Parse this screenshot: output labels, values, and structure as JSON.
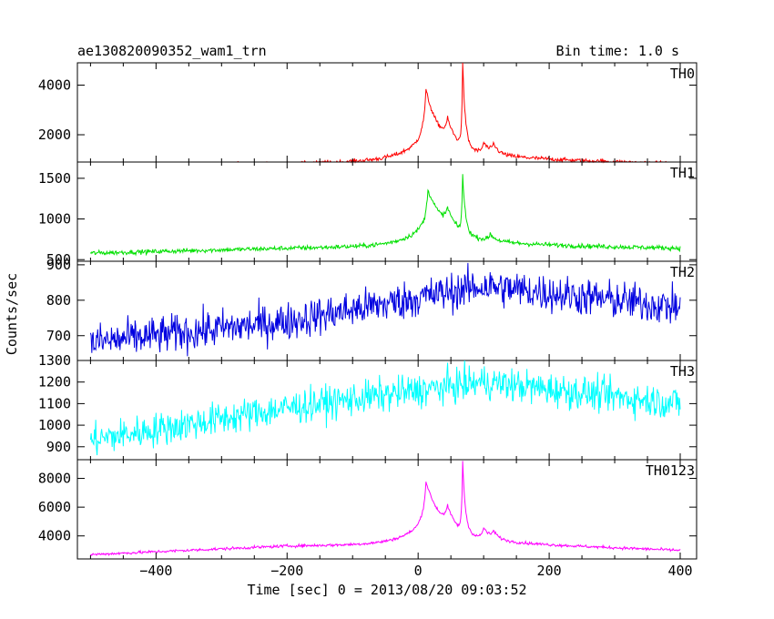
{
  "header": {
    "title": "ae130820090352_wam1_trn",
    "bin_time": "Bin time: 1.0 s"
  },
  "axes": {
    "xlabel": "Time [sec] 0 = 2013/08/20 09:03:52",
    "ylabel": "Counts/sec"
  },
  "chart_data": {
    "type": "line",
    "title": "ae130820090352_wam1_trn",
    "subtitle": "Bin time: 1.0 s",
    "xlabel": "Time [sec] 0 = 2013/08/20 09:03:52",
    "ylabel": "Counts/sec",
    "xlim": [
      -520,
      425
    ],
    "x_ticks": [
      -400,
      -200,
      0,
      200,
      400
    ],
    "x_tick_labels": [
      "−400",
      "−200",
      "0",
      "200",
      "400"
    ],
    "x_range": [
      -500,
      400
    ],
    "grid": false,
    "panels": [
      {
        "name": "TH0",
        "color": "#ff0000",
        "ylim": [
          900,
          4900
        ],
        "yticks": [
          2000,
          4000
        ],
        "baseline": [
          800,
          820,
          1070,
          820
        ],
        "noise": 60,
        "bursts": [
          {
            "center": 5,
            "peak": 900,
            "rise": 30,
            "decay": 60
          },
          {
            "center": 12,
            "peak": 2000,
            "rise": 4,
            "decay": 20
          },
          {
            "center": 45,
            "peak": 800,
            "rise": 5,
            "decay": 12
          },
          {
            "center": 68,
            "peak": 3300,
            "rise": 1.5,
            "decay": 4
          },
          {
            "center": 100,
            "peak": 400,
            "rise": 3,
            "decay": 10
          },
          {
            "center": 115,
            "peak": 350,
            "rise": 3,
            "decay": 8
          }
        ]
      },
      {
        "name": "TH1",
        "color": "#00e000",
        "ylim": [
          480,
          1700
        ],
        "yticks": [
          500,
          1000,
          1500
        ],
        "baseline": [
          580,
          640,
          690,
          640
        ],
        "noise": 20,
        "bursts": [
          {
            "center": 5,
            "peak": 220,
            "rise": 30,
            "decay": 60
          },
          {
            "center": 15,
            "peak": 500,
            "rise": 4,
            "decay": 25
          },
          {
            "center": 45,
            "peak": 200,
            "rise": 5,
            "decay": 12
          },
          {
            "center": 68,
            "peak": 700,
            "rise": 1.5,
            "decay": 4
          },
          {
            "center": 110,
            "peak": 80,
            "rise": 3,
            "decay": 8
          }
        ]
      },
      {
        "name": "TH2",
        "color": "#0000e0",
        "ylim": [
          630,
          910
        ],
        "yticks": [
          700,
          800,
          900
        ],
        "baseline": [
          680,
          740,
          840,
          780
        ],
        "noise": 38,
        "bursts": []
      },
      {
        "name": "TH3",
        "color": "#00ffff",
        "ylim": [
          840,
          1300
        ],
        "yticks": [
          900,
          1000,
          1100,
          1200,
          1300
        ],
        "baseline": [
          930,
          1080,
          1200,
          1100
        ],
        "noise": 55,
        "bursts": []
      },
      {
        "name": "TH0123",
        "color": "#ff00ff",
        "ylim": [
          2400,
          9300
        ],
        "yticks": [
          4000,
          6000,
          8000
        ],
        "baseline": [
          2700,
          3300,
          3500,
          3000
        ],
        "noise": 70,
        "bursts": [
          {
            "center": 5,
            "peak": 1500,
            "rise": 30,
            "decay": 60
          },
          {
            "center": 12,
            "peak": 3000,
            "rise": 4,
            "decay": 22
          },
          {
            "center": 45,
            "peak": 1200,
            "rise": 5,
            "decay": 12
          },
          {
            "center": 68,
            "peak": 4800,
            "rise": 1.5,
            "decay": 4
          },
          {
            "center": 100,
            "peak": 700,
            "rise": 3,
            "decay": 10
          },
          {
            "center": 115,
            "peak": 500,
            "rise": 3,
            "decay": 8
          }
        ]
      }
    ]
  }
}
